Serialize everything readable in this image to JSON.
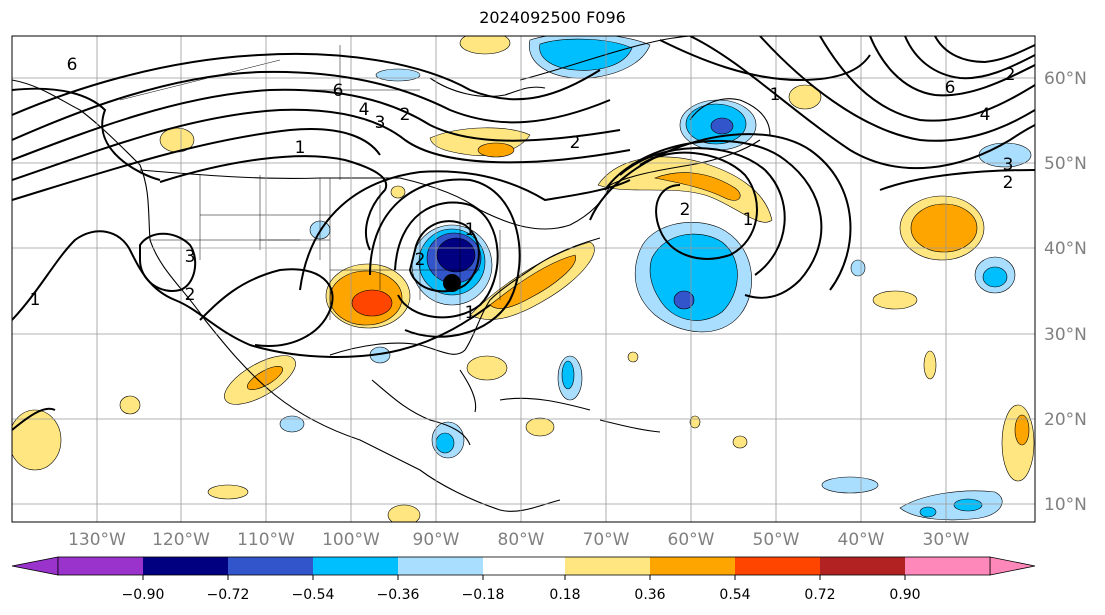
{
  "title": "2024092500 F096",
  "map": {
    "projection": "equirectangular",
    "lon_range": [
      -140,
      -23
    ],
    "lat_range": [
      8,
      65
    ],
    "lon_ticks": [
      "130°W",
      "120°W",
      "110°W",
      "100°W",
      "90°W",
      "80°W",
      "70°W",
      "60°W",
      "50°W",
      "40°W",
      "30°W"
    ],
    "lat_ticks": [
      "60°N",
      "50°N",
      "40°N",
      "30°N",
      "20°N",
      "10°N"
    ],
    "tick_color": "#808080",
    "grid": true,
    "marker": {
      "label": "storm-center-marker",
      "lon": -88.5,
      "lat": 36.2,
      "color": "#000000"
    },
    "contour_labels": [
      "6",
      "6",
      "4",
      "3",
      "2",
      "1",
      "2",
      "1",
      "6",
      "4",
      "2",
      "2",
      "3",
      "2",
      "1",
      "2",
      "1",
      "3",
      "2",
      "1",
      "1"
    ]
  },
  "colorbar": {
    "extend": "both",
    "colors": [
      "#9933cc",
      "#000080",
      "#3355cc",
      "#00bfff",
      "#aadeff",
      "#ffffff",
      "#ffe680",
      "#ffa500",
      "#ff4500",
      "#b22222",
      "#ff88bb"
    ],
    "tick_labels": [
      "−0.90",
      "−0.72",
      "−0.54",
      "−0.36",
      "−0.18",
      "0.18",
      "0.36",
      "0.54",
      "0.72",
      "0.90"
    ]
  }
}
